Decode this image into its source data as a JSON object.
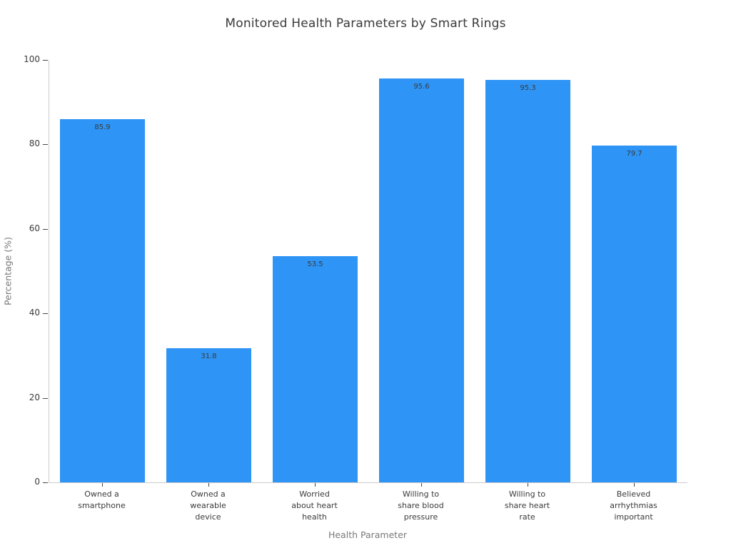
{
  "chart_data": {
    "type": "bar",
    "title": "Monitored Health Parameters by Smart Rings",
    "xlabel": "Health Parameter",
    "ylabel": "Percentage (%)",
    "ylim": [
      0,
      100
    ],
    "yticks": [
      0,
      20,
      40,
      60,
      80,
      100
    ],
    "categories": [
      "Owned a smartphone",
      "Owned a wearable device",
      "Worried about heart health",
      "Willing to share blood pressure",
      "Willing to share heart rate",
      "Believed arrhythmias important"
    ],
    "category_label_lines": [
      [
        "Owned a",
        "smartphone"
      ],
      [
        "Owned a",
        "wearable",
        "device"
      ],
      [
        "Worried",
        "about heart",
        "health"
      ],
      [
        "Willing to",
        "share blood",
        "pressure"
      ],
      [
        "Willing to",
        "share heart",
        "rate"
      ],
      [
        "Believed",
        "arrhythmias",
        "important"
      ]
    ],
    "values": [
      85.9,
      31.8,
      53.5,
      95.6,
      95.3,
      79.7
    ],
    "grid": false,
    "legend_position": "none",
    "colors": {
      "bar_fill": "#2E94F5",
      "value_label_text": "#3b3b3b",
      "tick_text": "#3a3a3a",
      "axis_title_text": "#787878",
      "spine": "#cccccc",
      "tick_mark": "#444444",
      "background": "#ffffff"
    }
  }
}
